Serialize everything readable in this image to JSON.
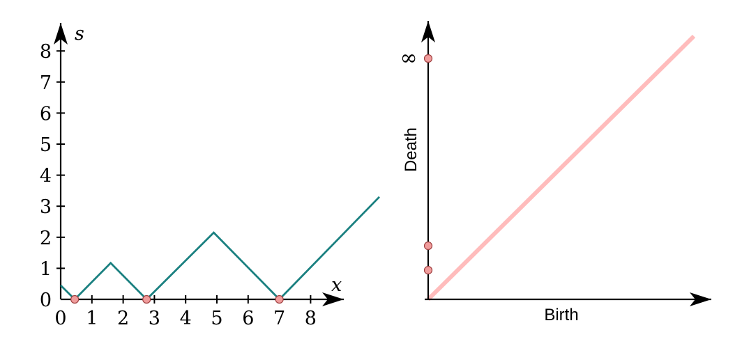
{
  "chart_data": [
    {
      "type": "line",
      "title": "",
      "xlabel": "x",
      "ylabel": "s",
      "xlim": [
        0,
        9
      ],
      "ylim": [
        0,
        8
      ],
      "x_ticks": [
        "0",
        "1",
        "2",
        "3",
        "4",
        "5",
        "6",
        "7",
        "8"
      ],
      "y_ticks": [
        "0",
        "1",
        "2",
        "3",
        "4",
        "5",
        "6",
        "7",
        "8"
      ],
      "series": [
        {
          "x": [
            0,
            0.45,
            1.6,
            2.75,
            4.9,
            7.0,
            10.2
          ],
          "y": [
            0.45,
            0,
            1.17,
            0,
            2.15,
            0,
            3.3
          ]
        }
      ],
      "markers": {
        "x": [
          0.45,
          2.75,
          7.0
        ],
        "y": [
          0,
          0,
          0
        ]
      },
      "colors": {
        "line": "#1a8080",
        "marker_fill": "#f09c9c",
        "marker_stroke": "#a04040"
      },
      "grid": false
    },
    {
      "type": "scatter",
      "title": "",
      "xlabel": "Birth",
      "ylabel": "Death",
      "infinity_label": "∞",
      "points": [
        {
          "birth": 0,
          "death": 1.17
        },
        {
          "birth": 0,
          "death": 2.15
        },
        {
          "birth": 0,
          "death": "∞"
        }
      ],
      "diagonal": true,
      "colors": {
        "diagonal": "#ffbcbc",
        "marker_fill": "#f09c9c",
        "marker_stroke": "#a04040"
      },
      "grid": false
    }
  ]
}
